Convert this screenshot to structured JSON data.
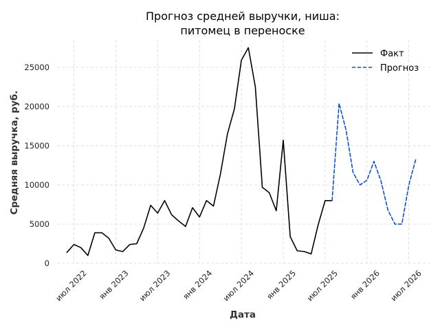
{
  "chart_data": {
    "type": "line",
    "title": [
      "Прогноз средней выручки, ниша:",
      "питомец в переноске"
    ],
    "xlabel": "Дата",
    "ylabel": "Средняя выручка, руб.",
    "ylim": [
      0,
      28500
    ],
    "yticks": [
      0,
      5000,
      10000,
      15000,
      20000,
      25000
    ],
    "xticks": [
      {
        "date": "2022-07",
        "label": "июл 2022"
      },
      {
        "date": "2023-01",
        "label": "янв 2023"
      },
      {
        "date": "2023-07",
        "label": "июл 2023"
      },
      {
        "date": "2024-01",
        "label": "янв 2024"
      },
      {
        "date": "2024-07",
        "label": "июл 2024"
      },
      {
        "date": "2025-01",
        "label": "янв 2025"
      },
      {
        "date": "2025-07",
        "label": "июл 2025"
      },
      {
        "date": "2026-01",
        "label": "янв 2026"
      },
      {
        "date": "2026-07",
        "label": "июл 2026"
      }
    ],
    "grid": true,
    "legend_position": "top-right",
    "series": [
      {
        "name": "Факт",
        "color": "#000000",
        "style": "solid",
        "x": [
          "2022-06",
          "2022-07",
          "2022-08",
          "2022-09",
          "2022-10",
          "2022-11",
          "2022-12",
          "2023-01",
          "2023-02",
          "2023-03",
          "2023-04",
          "2023-05",
          "2023-06",
          "2023-07",
          "2023-08",
          "2023-09",
          "2023-10",
          "2023-11",
          "2023-12",
          "2024-01",
          "2024-02",
          "2024-03",
          "2024-04",
          "2024-05",
          "2024-06",
          "2024-07",
          "2024-08",
          "2024-09",
          "2024-10",
          "2024-11",
          "2024-12",
          "2025-01",
          "2025-02",
          "2025-03",
          "2025-04",
          "2025-05",
          "2025-06",
          "2025-07",
          "2025-08"
        ],
        "values": [
          1400,
          2400,
          2000,
          1000,
          3900,
          3900,
          3200,
          1700,
          1500,
          2400,
          2500,
          4500,
          7400,
          6400,
          8000,
          6200,
          5400,
          4700,
          7100,
          5900,
          8000,
          7300,
          11400,
          16500,
          19700,
          25900,
          27500,
          22500,
          9700,
          9000,
          6700,
          15700,
          3400,
          1600,
          1500,
          1200,
          4900,
          8000,
          8000
        ]
      },
      {
        "name": "Прогноз",
        "color": "#0b4fd6",
        "style": "dashed",
        "x": [
          "2025-08",
          "2025-09",
          "2025-10",
          "2025-11",
          "2025-12",
          "2026-01",
          "2026-02",
          "2026-03",
          "2026-04",
          "2026-05",
          "2026-06",
          "2026-07",
          "2026-08"
        ],
        "values": [
          8000,
          20400,
          17000,
          11600,
          10000,
          10600,
          13000,
          10500,
          6800,
          5000,
          5000,
          10000,
          13300
        ]
      }
    ]
  }
}
